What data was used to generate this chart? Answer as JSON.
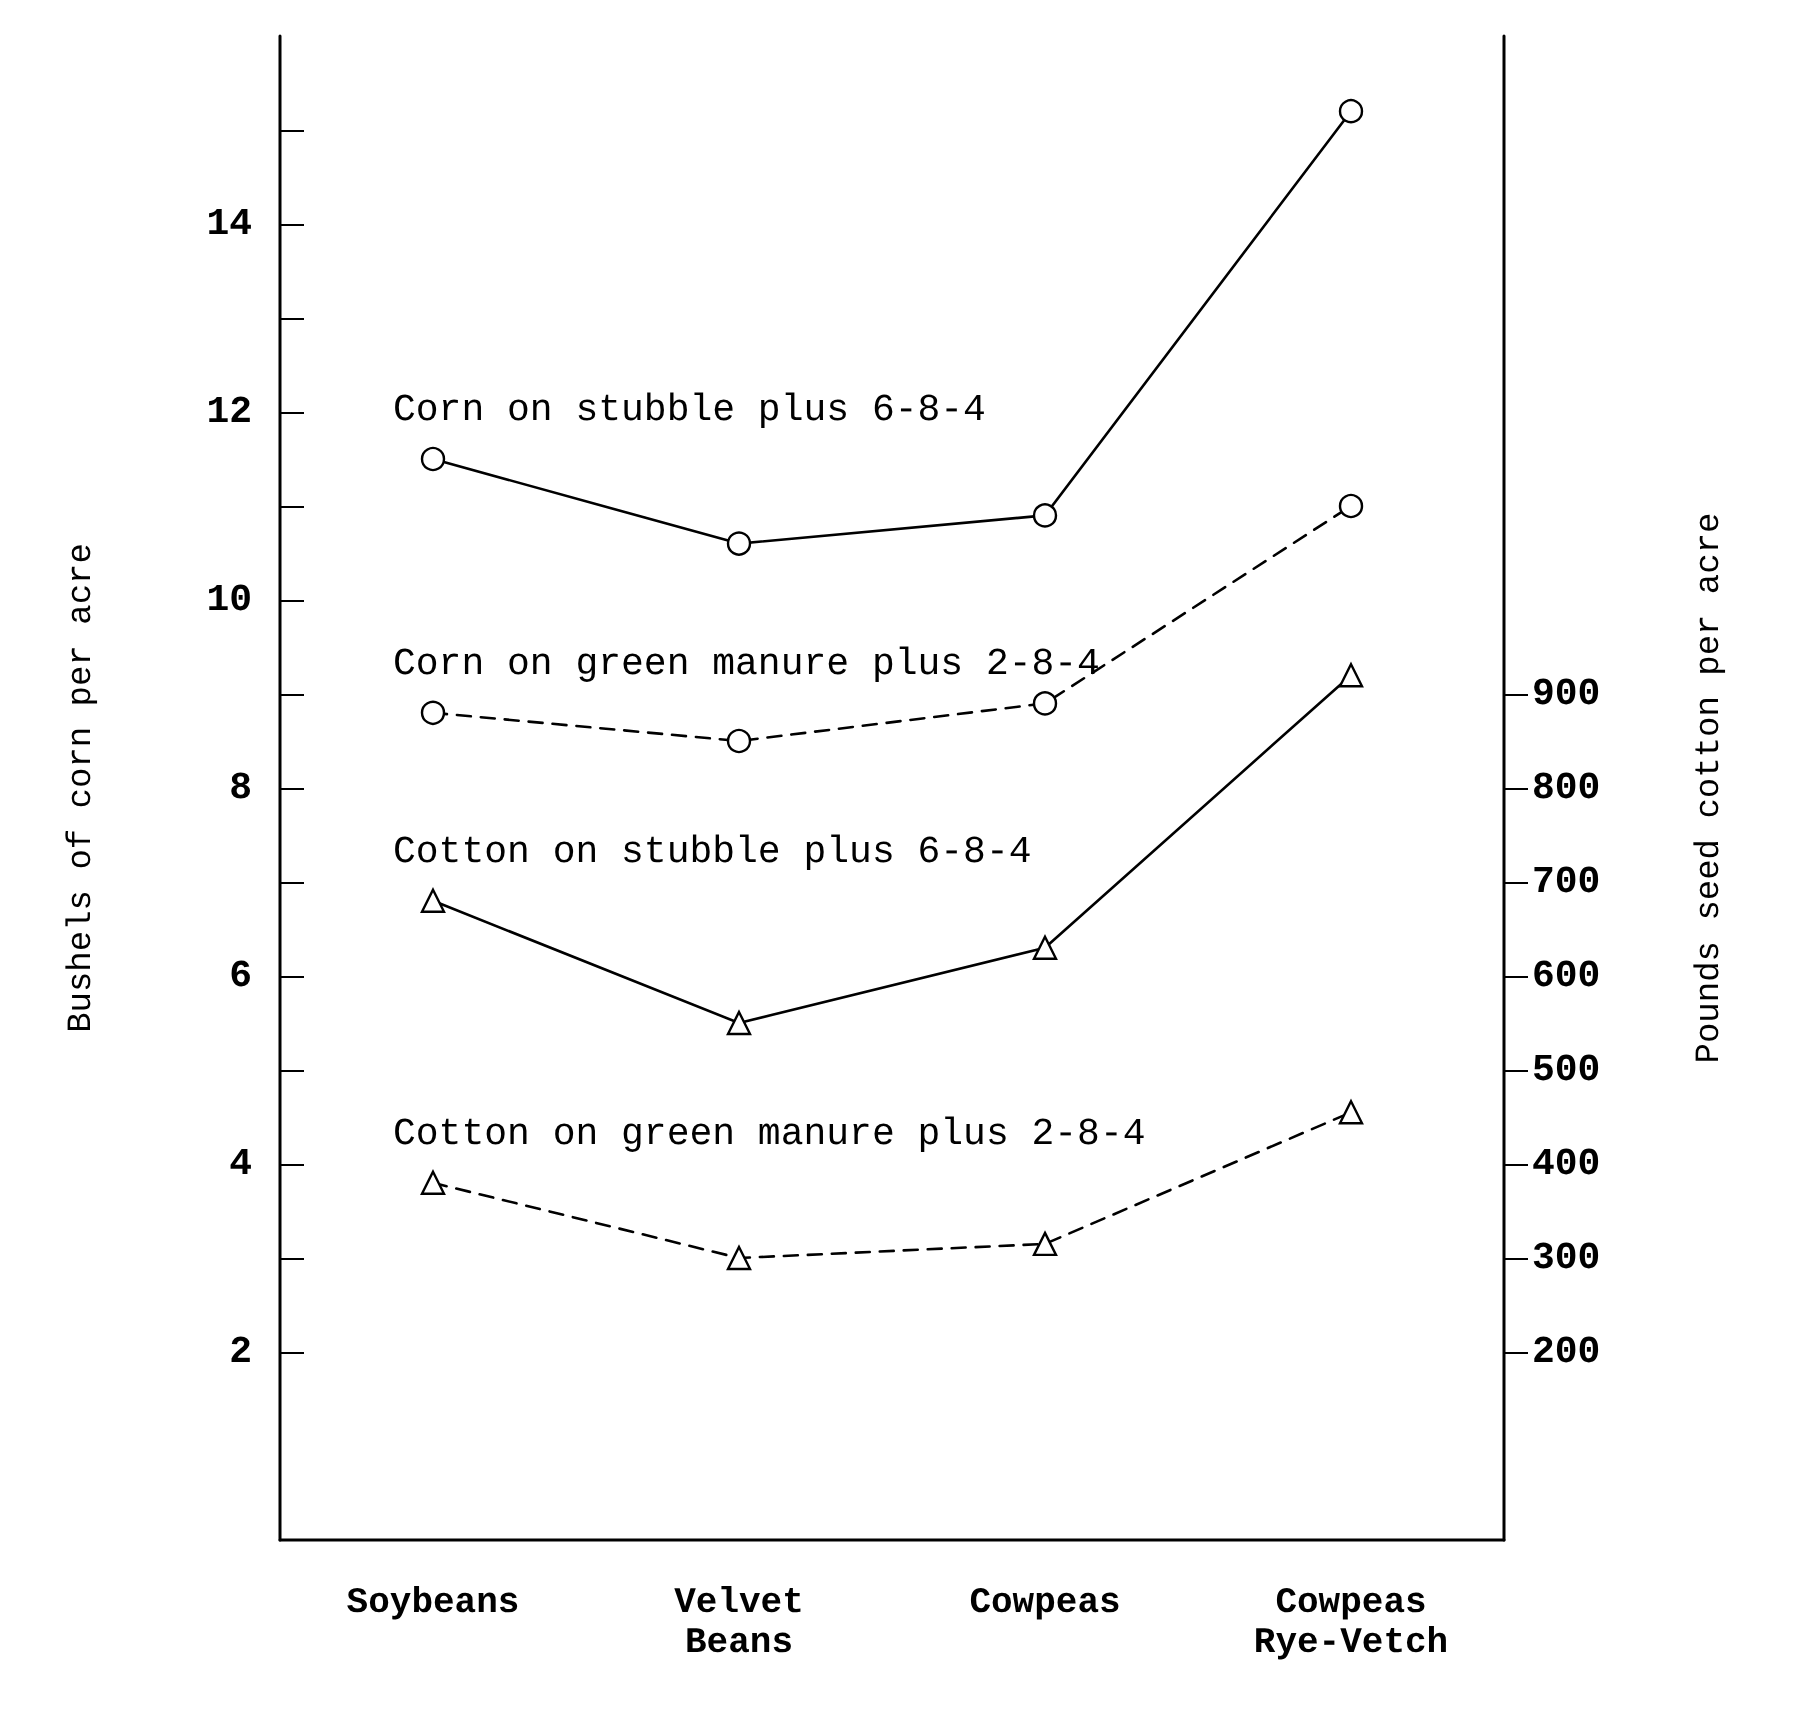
{
  "chart_data": {
    "type": "line",
    "categories": [
      "Soybeans",
      "Velvet\nBeans",
      "Cowpeas",
      "Cowpeas\nRye-Vetch"
    ],
    "ylabel": "Bushels of corn per acre",
    "y2label": "Pounds seed cotton per acre",
    "ylim": [
      0,
      16
    ],
    "yticks": [
      2,
      {
        "value": 3,
        "label": null
      },
      4,
      {
        "value": 5,
        "label": null
      },
      6,
      {
        "value": 7,
        "label": null
      },
      8,
      {
        "value": 9,
        "label": null
      },
      10,
      {
        "value": 11,
        "label": null
      },
      12,
      {
        "value": 13,
        "label": null
      },
      14,
      {
        "value": 15,
        "label": null
      }
    ],
    "y2lim": [
      0,
      1600
    ],
    "y2ticks": [
      200,
      300,
      400,
      500,
      600,
      700,
      800,
      900
    ],
    "grid": false,
    "legend": false,
    "series": [
      {
        "name": "Corn on stubble plus 6-8-4",
        "color": "#000000",
        "marker": "circle",
        "line_style": "solid",
        "values": [
          11.5,
          10.6,
          10.9,
          15.2
        ]
      },
      {
        "name": "Corn on green manure plus 2-8-4",
        "color": "#000000",
        "marker": "circle",
        "line_style": "dashed",
        "values": [
          8.8,
          8.5,
          8.9,
          11.0
        ]
      },
      {
        "name": "Cotton on stubble plus 6-8-4",
        "color": "#000000",
        "marker": "triangle",
        "line_style": "solid",
        "axis": "y2",
        "values": [
          680,
          550,
          630,
          920
        ]
      },
      {
        "name": "Cotton on green manure plus 2-8-4",
        "color": "#000000",
        "marker": "triangle",
        "line_style": "dashed",
        "axis": "y2",
        "values": [
          380,
          300,
          315,
          455
        ]
      }
    ]
  }
}
